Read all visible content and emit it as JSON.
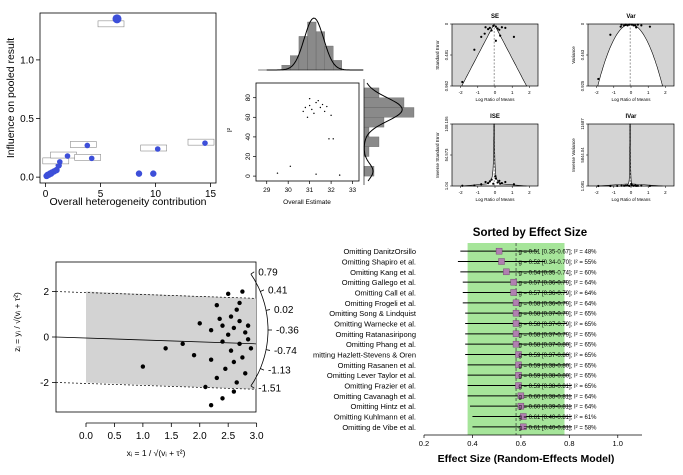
{
  "chart_data": [
    {
      "id": "baujat",
      "type": "scatter",
      "xlabel": "Overall heterogeneity contribution",
      "ylabel": "Influence on pooled result",
      "xticks": [
        "0",
        "5",
        "10",
        "15"
      ],
      "yticks": [
        "0.0",
        "0.5",
        "1.0"
      ],
      "xlim": [
        -0.5,
        15.5
      ],
      "ylim": [
        -0.05,
        1.4
      ],
      "points": [
        {
          "x": 0.1,
          "y": 0.01
        },
        {
          "x": 0.2,
          "y": 0.02
        },
        {
          "x": 0.3,
          "y": 0.02
        },
        {
          "x": 0.4,
          "y": 0.03
        },
        {
          "x": 0.5,
          "y": 0.03
        },
        {
          "x": 0.6,
          "y": 0.04
        },
        {
          "x": 0.8,
          "y": 0.05
        },
        {
          "x": 1.0,
          "y": 0.06
        },
        {
          "x": 1.2,
          "y": 0.1
        },
        {
          "x": 1.3,
          "y": 0.13
        },
        {
          "x": 2.0,
          "y": 0.18
        },
        {
          "x": 3.8,
          "y": 0.27
        },
        {
          "x": 4.2,
          "y": 0.16
        },
        {
          "x": 6.5,
          "y": 1.35
        },
        {
          "x": 10.2,
          "y": 0.24
        },
        {
          "x": 14.5,
          "y": 0.29
        },
        {
          "x": 8.5,
          "y": 0.03
        },
        {
          "x": 9.8,
          "y": 0.03
        }
      ]
    },
    {
      "id": "gosh-density",
      "type": "bar",
      "bins": [
        29.9,
        30.3,
        30.7,
        31.1,
        31.5,
        31.9,
        32.3
      ],
      "values": [
        1,
        3,
        7,
        10,
        8,
        5,
        2
      ]
    },
    {
      "id": "gosh-scatter",
      "type": "scatter",
      "xlabel": "Overall Estimate",
      "ylabel": "I²",
      "xticks": [
        "29",
        "30",
        "31",
        "32",
        "33"
      ],
      "yticks": [
        "0",
        "20",
        "40",
        "60",
        "80"
      ],
      "xlim": [
        28.5,
        33.3
      ],
      "ylim": [
        -5,
        95
      ],
      "points": [
        {
          "x": 30.8,
          "y": 70
        },
        {
          "x": 31.0,
          "y": 72
        },
        {
          "x": 31.1,
          "y": 68
        },
        {
          "x": 31.3,
          "y": 75
        },
        {
          "x": 31.5,
          "y": 70
        },
        {
          "x": 31.7,
          "y": 66
        },
        {
          "x": 31.2,
          "y": 64
        },
        {
          "x": 30.9,
          "y": 60
        },
        {
          "x": 31.6,
          "y": 73
        },
        {
          "x": 31.4,
          "y": 77
        },
        {
          "x": 31.8,
          "y": 71
        },
        {
          "x": 32.0,
          "y": 62
        },
        {
          "x": 31.0,
          "y": 79
        },
        {
          "x": 30.7,
          "y": 66
        },
        {
          "x": 31.9,
          "y": 38
        },
        {
          "x": 32.1,
          "y": 38
        },
        {
          "x": 29.5,
          "y": 3
        },
        {
          "x": 30.1,
          "y": 10
        },
        {
          "x": 31.3,
          "y": 2
        },
        {
          "x": 32.4,
          "y": 1
        }
      ]
    },
    {
      "id": "gosh-i2-density",
      "type": "bar",
      "bins": [
        5,
        15,
        25,
        35,
        45,
        55,
        65,
        75,
        85
      ],
      "values": [
        2,
        0,
        1,
        3,
        1,
        4,
        10,
        8,
        3
      ]
    },
    {
      "id": "funnel-se",
      "type": "scatter",
      "title": "SE",
      "xlabel": "Log Ratio of Means",
      "ylabel": "Standard Error",
      "xticks": [
        "-2",
        "-1",
        "0",
        "1",
        "2"
      ],
      "yticks": [
        "0.962",
        "0.481",
        "0"
      ],
      "xlim": [
        -2.5,
        2.5
      ],
      "ylim": [
        0.962,
        0
      ],
      "points": [
        {
          "x": -0.55,
          "y": 0.05
        },
        {
          "x": -0.4,
          "y": 0.08
        },
        {
          "x": -0.3,
          "y": 0.06
        },
        {
          "x": -0.2,
          "y": 0.1
        },
        {
          "x": -0.1,
          "y": 0.03
        },
        {
          "x": 0.05,
          "y": 0.04
        },
        {
          "x": 0.15,
          "y": 0.07
        },
        {
          "x": 0.25,
          "y": 0.09
        },
        {
          "x": 0.4,
          "y": 0.05
        },
        {
          "x": 0.6,
          "y": 0.06
        },
        {
          "x": -0.6,
          "y": 0.15
        },
        {
          "x": -0.8,
          "y": 0.2
        },
        {
          "x": 0.3,
          "y": 0.18
        },
        {
          "x": 0.05,
          "y": 0.26
        },
        {
          "x": -1.2,
          "y": 0.4
        },
        {
          "x": 1.1,
          "y": 0.2
        },
        {
          "x": -1.9,
          "y": 0.9
        }
      ]
    },
    {
      "id": "funnel-var",
      "type": "scatter",
      "title": "Var",
      "xlabel": "Log Ratio of Means",
      "ylabel": "Variance",
      "xticks": [
        "-2",
        "-1",
        "0",
        "1",
        "2"
      ],
      "yticks": [
        "0.925",
        "0.463",
        "0"
      ],
      "xlim": [
        -2.5,
        2.5
      ],
      "ylim": [
        0.925,
        0
      ],
      "points": [
        {
          "x": -0.55,
          "y": 0.01
        },
        {
          "x": -0.4,
          "y": 0.02
        },
        {
          "x": -0.3,
          "y": 0.01
        },
        {
          "x": -0.2,
          "y": 0.02
        },
        {
          "x": -0.1,
          "y": 0.01
        },
        {
          "x": 0.05,
          "y": 0.01
        },
        {
          "x": 0.15,
          "y": 0.02
        },
        {
          "x": 0.25,
          "y": 0.02
        },
        {
          "x": 0.4,
          "y": 0.01
        },
        {
          "x": 0.6,
          "y": 0.02
        },
        {
          "x": -0.6,
          "y": 0.04
        },
        {
          "x": 0.3,
          "y": 0.05
        },
        {
          "x": -1.2,
          "y": 0.16
        },
        {
          "x": 1.1,
          "y": 0.04
        },
        {
          "x": -1.9,
          "y": 0.82
        }
      ]
    },
    {
      "id": "funnel-ise",
      "type": "scatter",
      "title": "ISE",
      "xlabel": "Log Ratio of Means",
      "ylabel": "Inverse Standard Error",
      "xticks": [
        "-2",
        "-1",
        "0",
        "1",
        "2"
      ],
      "yticks": [
        "1.04",
        "54.573",
        "108.106"
      ],
      "xlim": [
        -2.5,
        2.5
      ],
      "ylim": [
        1.04,
        108.106
      ],
      "points": [
        {
          "x": -0.55,
          "y": 8
        },
        {
          "x": -0.4,
          "y": 6
        },
        {
          "x": -0.3,
          "y": 9
        },
        {
          "x": -0.2,
          "y": 12
        },
        {
          "x": -0.1,
          "y": 5
        },
        {
          "x": 0.05,
          "y": 14
        },
        {
          "x": 0.15,
          "y": 7
        },
        {
          "x": 0.25,
          "y": 10
        },
        {
          "x": 0.4,
          "y": 6
        },
        {
          "x": 0.6,
          "y": 8
        },
        {
          "x": -0.8,
          "y": 4
        },
        {
          "x": 0.3,
          "y": 5
        },
        {
          "x": -1.2,
          "y": 2
        },
        {
          "x": 1.1,
          "y": 4
        },
        {
          "x": -1.9,
          "y": 1.5
        },
        {
          "x": 0.02,
          "y": 18
        }
      ]
    },
    {
      "id": "funnel-ivar",
      "type": "scatter",
      "title": "IVar",
      "xlabel": "Log Ratio of Means",
      "ylabel": "Inverse Variance",
      "xticks": [
        "-2",
        "-1",
        "0",
        "1",
        "2"
      ],
      "yticks": [
        "1.081",
        "5844.04",
        "11687"
      ],
      "xlim": [
        -2.5,
        2.5
      ],
      "ylim": [
        1.081,
        11687
      ],
      "points": [
        {
          "x": -0.55,
          "y": 60
        },
        {
          "x": -0.4,
          "y": 40
        },
        {
          "x": -0.3,
          "y": 80
        },
        {
          "x": -0.2,
          "y": 140
        },
        {
          "x": -0.1,
          "y": 25
        },
        {
          "x": 0.05,
          "y": 190
        },
        {
          "x": 0.15,
          "y": 50
        },
        {
          "x": 0.25,
          "y": 100
        },
        {
          "x": 0.4,
          "y": 35
        },
        {
          "x": 0.6,
          "y": 60
        },
        {
          "x": -0.8,
          "y": 16
        },
        {
          "x": 0.3,
          "y": 25
        },
        {
          "x": -1.2,
          "y": 4
        },
        {
          "x": 1.1,
          "y": 16
        },
        {
          "x": -1.9,
          "y": 2
        },
        {
          "x": 0.02,
          "y": 400
        }
      ]
    },
    {
      "id": "radial",
      "type": "scatter",
      "xlabel": "xᵢ = 1 / √(vᵢ + τ²)",
      "ylabel": "zᵢ = yᵢ / √(vᵢ + τ²)",
      "xticks": [
        "0.0",
        "0.5",
        "1.0",
        "1.5",
        "2.0",
        "2.5",
        "3.0"
      ],
      "yticks": [
        "-2",
        "0",
        "2"
      ],
      "arc_ticks": [
        "0.79",
        "0.41",
        "0.02",
        "-0.36",
        "-0.74",
        "-1.13",
        "-1.51"
      ],
      "xlim": [
        0,
        3.2
      ],
      "ylim": [
        -3.3,
        3.3
      ],
      "points": [
        {
          "x": 1.0,
          "y": -1.3
        },
        {
          "x": 1.4,
          "y": -0.5
        },
        {
          "x": 1.7,
          "y": -0.3
        },
        {
          "x": 1.9,
          "y": -0.8
        },
        {
          "x": 2.0,
          "y": 0.6
        },
        {
          "x": 2.1,
          "y": -2.2
        },
        {
          "x": 2.2,
          "y": -1.0
        },
        {
          "x": 2.2,
          "y": 0.3
        },
        {
          "x": 2.3,
          "y": -1.8
        },
        {
          "x": 2.3,
          "y": 1.4
        },
        {
          "x": 2.35,
          "y": 0.8
        },
        {
          "x": 2.4,
          "y": -0.2
        },
        {
          "x": 2.4,
          "y": -2.7
        },
        {
          "x": 2.45,
          "y": -1.4
        },
        {
          "x": 2.5,
          "y": 1.9
        },
        {
          "x": 2.5,
          "y": 0.1
        },
        {
          "x": 2.55,
          "y": -0.6
        },
        {
          "x": 2.55,
          "y": 0.9
        },
        {
          "x": 2.6,
          "y": -1.1
        },
        {
          "x": 2.6,
          "y": 0.4
        },
        {
          "x": 2.65,
          "y": -2.0
        },
        {
          "x": 2.65,
          "y": 1.2
        },
        {
          "x": 2.7,
          "y": -0.3
        },
        {
          "x": 2.7,
          "y": 0.7
        },
        {
          "x": 2.75,
          "y": -0.9
        },
        {
          "x": 2.75,
          "y": 2.0
        },
        {
          "x": 2.8,
          "y": 0.2
        },
        {
          "x": 2.8,
          "y": -1.6
        },
        {
          "x": 2.85,
          "y": 0.5
        },
        {
          "x": 2.9,
          "y": -0.5
        },
        {
          "x": 2.2,
          "y": -3.0
        },
        {
          "x": 2.6,
          "y": -2.4
        },
        {
          "x": 2.4,
          "y": 0.5
        },
        {
          "x": 2.7,
          "y": 1.5
        },
        {
          "x": 2.85,
          "y": -0.1
        }
      ]
    },
    {
      "id": "leave-one-out",
      "type": "forest",
      "title": "Sorted by Effect Size",
      "xlabel": "Effect Size (Random-Effects Model)",
      "xticks": [
        "0.2",
        "0.4",
        "0.6",
        "0.8",
        "1.0"
      ],
      "xlim": [
        0.2,
        1.1
      ],
      "ci_band": [
        0.38,
        0.78
      ],
      "reference_line": 0.58,
      "rows": [
        {
          "study": "Omitting DanitzOrsillo",
          "est": 0.51,
          "lo": 0.35,
          "hi": 0.67,
          "ci_text": "[0.35-0.67]",
          "i2": "48%"
        },
        {
          "study": "Omitting Shapiro et al.",
          "est": 0.52,
          "lo": 0.34,
          "hi": 0.7,
          "ci_text": "[0.34-0.70]",
          "i2": "55%"
        },
        {
          "study": "Omitting Kang et al.",
          "est": 0.54,
          "lo": 0.35,
          "hi": 0.74,
          "ci_text": "[0.35-0.74]",
          "i2": "60%"
        },
        {
          "study": "Omitting Gallego et al.",
          "est": 0.57,
          "lo": 0.36,
          "hi": 0.79,
          "ci_text": "[0.36-0.79]",
          "i2": "64%"
        },
        {
          "study": "Omitting Call et al.",
          "est": 0.57,
          "lo": 0.36,
          "hi": 0.79,
          "ci_text": "[0.36-0.79]",
          "i2": "64%"
        },
        {
          "study": "Omitting Frogeli et al.",
          "est": 0.58,
          "lo": 0.36,
          "hi": 0.79,
          "ci_text": "[0.36-0.79]",
          "i2": "64%"
        },
        {
          "study": "Omitting Song & Lindquist",
          "est": 0.58,
          "lo": 0.37,
          "hi": 0.79,
          "ci_text": "[0.37-0.79]",
          "i2": "65%"
        },
        {
          "study": "Omitting Warnecke et al.",
          "est": 0.58,
          "lo": 0.37,
          "hi": 0.79,
          "ci_text": "[0.37-0.79]",
          "i2": "65%"
        },
        {
          "study": "Omitting Ratanasiripong",
          "est": 0.58,
          "lo": 0.37,
          "hi": 0.79,
          "ci_text": "[0.37-0.79]",
          "i2": "65%"
        },
        {
          "study": "Omitting Phang et al.",
          "est": 0.58,
          "lo": 0.37,
          "hi": 0.8,
          "ci_text": "[0.37-0.80]",
          "i2": "65%"
        },
        {
          "study": "mitting Hazlett-Stevens & Oren",
          "est": 0.59,
          "lo": 0.37,
          "hi": 0.8,
          "ci_text": "[0.37-0.80]",
          "i2": "65%"
        },
        {
          "study": "Omitting Rasanen et al.",
          "est": 0.59,
          "lo": 0.38,
          "hi": 0.8,
          "ci_text": "[0.38-0.80]",
          "i2": "65%"
        },
        {
          "study": "Omitting Lever Taylor et al.",
          "est": 0.59,
          "lo": 0.38,
          "hi": 0.8,
          "ci_text": "[0.38-0.80]",
          "i2": "65%"
        },
        {
          "study": "Omitting Frazier et al.",
          "est": 0.59,
          "lo": 0.38,
          "hi": 0.81,
          "ci_text": "[0.38-0.81]",
          "i2": "65%"
        },
        {
          "study": "Omitting Cavanagh et al.",
          "est": 0.6,
          "lo": 0.38,
          "hi": 0.81,
          "ci_text": "[0.38-0.81]",
          "i2": "64%"
        },
        {
          "study": "Omitting Hintz et al.",
          "est": 0.6,
          "lo": 0.39,
          "hi": 0.81,
          "ci_text": "[0.39-0.81]",
          "i2": "64%"
        },
        {
          "study": "Omitting Kuhlmann et al.",
          "est": 0.61,
          "lo": 0.4,
          "hi": 0.81,
          "ci_text": "[0.40-0.81]",
          "i2": "61%"
        },
        {
          "study": "Omitting de Vibe et al.",
          "est": 0.61,
          "lo": 0.4,
          "hi": 0.81,
          "ci_text": "[0.40-0.81]",
          "i2": "58%"
        }
      ]
    }
  ]
}
